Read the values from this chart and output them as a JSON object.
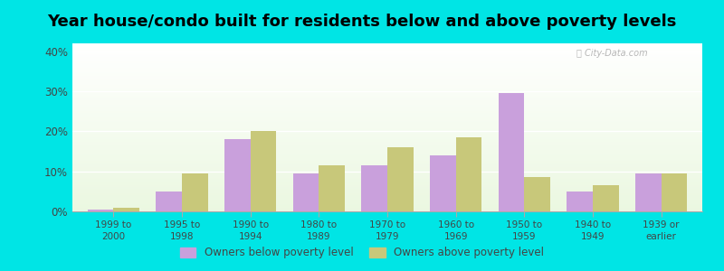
{
  "title": "Year house/condo built for residents below and above poverty levels",
  "categories": [
    "1999 to\n2000",
    "1995 to\n1998",
    "1990 to\n1994",
    "1980 to\n1989",
    "1970 to\n1979",
    "1960 to\n1969",
    "1950 to\n1959",
    "1940 to\n1949",
    "1939 or\nearlier"
  ],
  "below_poverty": [
    0.5,
    5.0,
    18.0,
    9.5,
    11.5,
    14.0,
    29.5,
    5.0,
    9.5
  ],
  "above_poverty": [
    1.0,
    9.5,
    20.0,
    11.5,
    16.0,
    18.5,
    8.5,
    6.5,
    9.5
  ],
  "below_color": "#c9a0dc",
  "above_color": "#c8c87a",
  "ylim": [
    0,
    42
  ],
  "yticks": [
    0,
    10,
    20,
    30,
    40
  ],
  "ytick_labels": [
    "0%",
    "10%",
    "20%",
    "30%",
    "40%"
  ],
  "legend_below": "Owners below poverty level",
  "legend_above": "Owners above poverty level",
  "outer_bg": "#00e5e5",
  "title_fontsize": 13,
  "bar_width": 0.38
}
